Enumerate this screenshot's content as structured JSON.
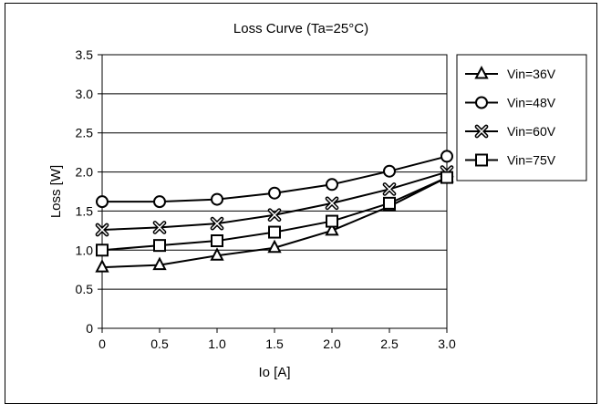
{
  "chart_data": {
    "type": "line",
    "title": "Loss Curve (Ta=25°C)",
    "xlabel": "Io [A]",
    "ylabel": "Loss [W]",
    "x": [
      0,
      0.5,
      1.0,
      1.5,
      2.0,
      2.5,
      3.0
    ],
    "xticks": [
      "0",
      "0.5",
      "1.0",
      "1.5",
      "2.0",
      "2.5",
      "3.0"
    ],
    "yticks": [
      "0",
      "0.5",
      "1.0",
      "1.5",
      "2.0",
      "2.5",
      "3.0",
      "3.5"
    ],
    "xlim": [
      0,
      3.0
    ],
    "ylim": [
      0,
      3.5
    ],
    "grid": "horizontal",
    "legend_position": "right",
    "series": [
      {
        "name": "Vin=36V",
        "marker": "triangle",
        "values": [
          0.78,
          0.81,
          0.93,
          1.03,
          1.25,
          1.56,
          1.93
        ]
      },
      {
        "name": "Vin=48V",
        "marker": "circle",
        "values": [
          1.62,
          1.62,
          1.65,
          1.73,
          1.84,
          2.01,
          2.2
        ]
      },
      {
        "name": "Vin=60V",
        "marker": "x",
        "values": [
          1.26,
          1.29,
          1.34,
          1.45,
          1.6,
          1.78,
          2.0
        ]
      },
      {
        "name": "Vin=75V",
        "marker": "square",
        "values": [
          1.0,
          1.06,
          1.12,
          1.23,
          1.37,
          1.6,
          1.93
        ]
      }
    ]
  }
}
